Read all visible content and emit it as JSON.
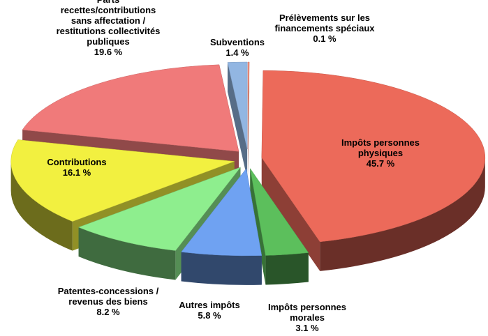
{
  "chart_data": {
    "type": "pie3d",
    "categories": [
      "Prélèvements sur les financements spéciaux",
      "Impôts personnes physiques",
      "Impôts personnes morales",
      "Autres impôts",
      "Patentes-concessions / revenus des biens",
      "Contributions",
      "Parts recettes/contributions sans affectation / restitutions collectivités publiques",
      "Subventions"
    ],
    "values": [
      0.1,
      45.7,
      3.1,
      5.8,
      8.2,
      16.1,
      19.6,
      1.4
    ],
    "value_labels": [
      "0.1 %",
      "45.7 %",
      "3.1 %",
      "5.8 %",
      "8.2 %",
      "16.1 %",
      "19.6 %",
      "1.4 %"
    ],
    "colors": [
      "#f08a7a",
      "#ec6a5a",
      "#5cbf5c",
      "#6fa2f2",
      "#8eee8e",
      "#f2f040",
      "#f07a7a",
      "#92b6e2"
    ]
  }
}
